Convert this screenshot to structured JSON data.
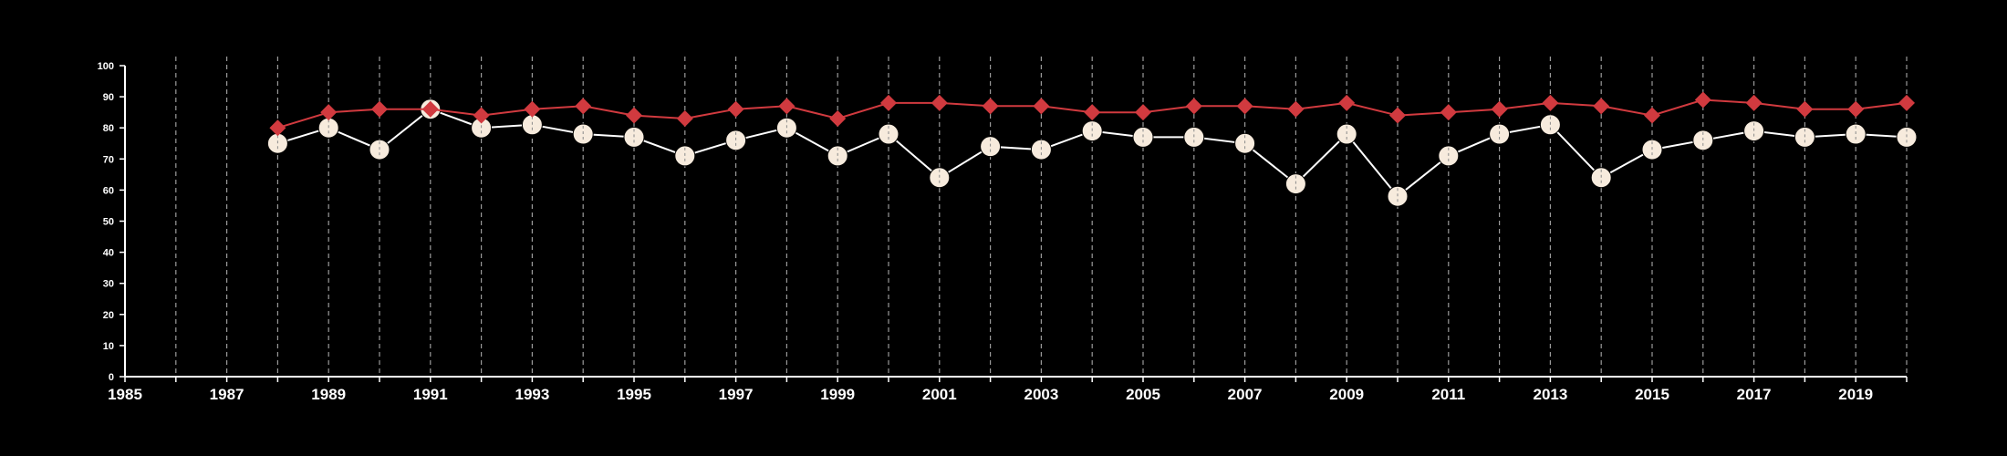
{
  "chart_data": {
    "type": "line",
    "title": "",
    "xlabel": "",
    "ylabel": "",
    "xlim": [
      1985,
      2020
    ],
    "ylim": [
      0,
      100
    ],
    "x_ticks": [
      "1985",
      "1987",
      "1989",
      "1991",
      "1993",
      "1995",
      "1997",
      "1999",
      "2001",
      "2003",
      "2005",
      "2007",
      "2009",
      "2011",
      "2013",
      "2015",
      "2017",
      "2019"
    ],
    "y_ticks": [
      "0",
      "10",
      "20",
      "30",
      "40",
      "50",
      "60",
      "70",
      "80",
      "90",
      "100"
    ],
    "grid": "vertical dashed, every year",
    "x": [
      1988,
      1989,
      1990,
      1991,
      1992,
      1993,
      1994,
      1995,
      1996,
      1997,
      1998,
      1999,
      2000,
      2001,
      2002,
      2003,
      2004,
      2005,
      2006,
      2007,
      2008,
      2009,
      2010,
      2011,
      2012,
      2013,
      2014,
      2015,
      2016,
      2017,
      2018,
      2019,
      2020
    ],
    "series": [
      {
        "marker": "diamond",
        "color": "#d13a3f",
        "values": [
          80,
          85,
          86,
          86,
          84,
          86,
          87,
          84,
          83,
          86,
          87,
          83,
          88,
          88,
          87,
          87,
          85,
          85,
          87,
          87,
          86,
          88,
          84,
          85,
          86,
          88,
          87,
          84,
          89,
          88,
          86,
          86,
          88
        ]
      },
      {
        "marker": "circle",
        "color": "#ffffff",
        "fill": "#f7ebdd",
        "values": [
          75,
          80,
          73,
          86,
          80,
          81,
          78,
          77,
          71,
          76,
          80,
          71,
          78,
          64,
          74,
          73,
          79,
          77,
          77,
          75,
          62,
          78,
          58,
          71,
          78,
          81,
          64,
          73,
          76,
          79,
          77,
          78,
          77
        ]
      }
    ]
  }
}
